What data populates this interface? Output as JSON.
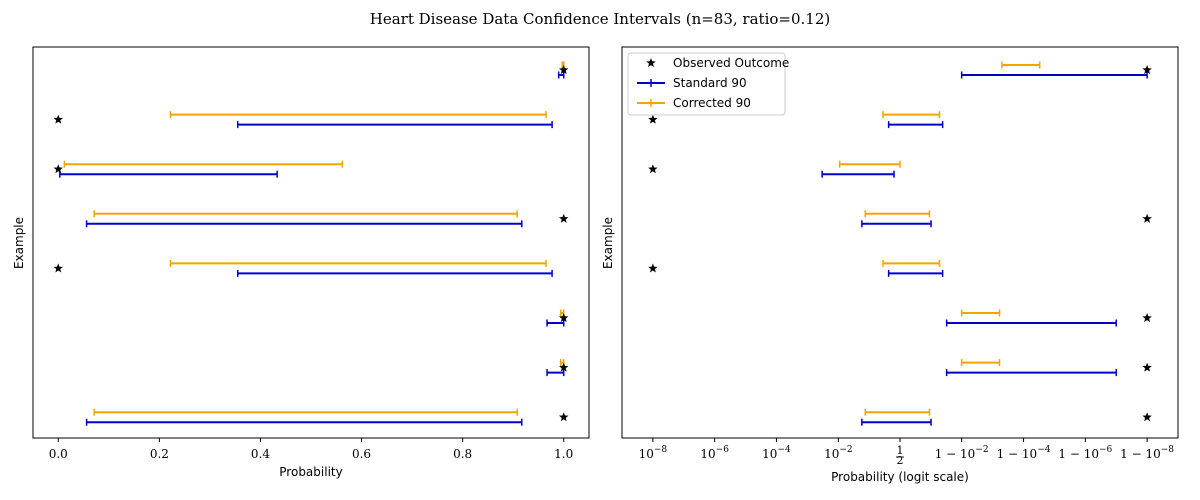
{
  "title": "Heart Disease Data Confidence Intervals (n=83, ratio=0.12)",
  "colors": {
    "standard": "#0000cc",
    "corrected": "#f5a300",
    "observed": "#000000"
  },
  "legend": {
    "placement": "upper-left of right panel",
    "observed": "Observed Outcome",
    "standard": "Standard 90",
    "corrected": "Corrected 90"
  },
  "chart_data": [
    {
      "type": "interval",
      "panel": "left",
      "xlabel": "Probability",
      "ylabel": "Example",
      "xscale": "linear",
      "xlim": [
        -0.05,
        1.05
      ],
      "xticks": [
        {
          "value": 0.0,
          "label": "0.0"
        },
        {
          "value": 0.2,
          "label": "0.2"
        },
        {
          "value": 0.4,
          "label": "0.4"
        },
        {
          "value": 0.6,
          "label": "0.6"
        },
        {
          "value": 0.8,
          "label": "0.8"
        },
        {
          "value": 1.0,
          "label": "1.0"
        }
      ],
      "rows": [
        {
          "observed": 1,
          "standard": [
            0.99,
            1.0
          ],
          "corrected": [
            0.997,
            1.0
          ]
        },
        {
          "observed": 0,
          "standard": [
            0.355,
            0.977
          ],
          "corrected": [
            0.222,
            0.965
          ]
        },
        {
          "observed": 0,
          "standard": [
            0.003,
            0.433
          ],
          "corrected": [
            0.012,
            0.562
          ]
        },
        {
          "observed": 1,
          "standard": [
            0.056,
            0.917
          ],
          "corrected": [
            0.071,
            0.908
          ]
        },
        {
          "observed": 0,
          "standard": [
            0.355,
            0.977
          ],
          "corrected": [
            0.222,
            0.965
          ]
        },
        {
          "observed": 1,
          "standard": [
            0.967,
            1.0
          ],
          "corrected": [
            0.994,
            1.0
          ]
        },
        {
          "observed": 1,
          "standard": [
            0.967,
            1.0
          ],
          "corrected": [
            0.994,
            1.0
          ]
        },
        {
          "observed": 1,
          "standard": [
            0.056,
            0.917
          ],
          "corrected": [
            0.071,
            0.908
          ]
        }
      ]
    },
    {
      "type": "interval",
      "panel": "right",
      "xlabel": "Probability (logit scale)",
      "ylabel": "Example",
      "xscale": "logit",
      "xlim": [
        1e-09,
        0.999999999
      ],
      "xticks": [
        {
          "value": 1e-08,
          "label": "10^{-8}"
        },
        {
          "value": 1e-06,
          "label": "10^{-6}"
        },
        {
          "value": 0.0001,
          "label": "10^{-4}"
        },
        {
          "value": 0.01,
          "label": "10^{-2}"
        },
        {
          "value": 0.5,
          "label": "1/2"
        },
        {
          "value": 0.99,
          "label": "1 - 10^{-2}"
        },
        {
          "value": 0.9999,
          "label": "1 - 10^{-4}"
        },
        {
          "value": 0.999999,
          "label": "1 - 10^{-6}"
        },
        {
          "value": 0.99999999,
          "label": "1 - 10^{-8}"
        }
      ],
      "rows": [
        {
          "observed": 0.99999999,
          "standard": [
            0.99,
            0.99999999
          ],
          "corrected": [
            0.9995,
            0.99997
          ]
        },
        {
          "observed": 1e-08,
          "standard": [
            0.3,
            0.96
          ],
          "corrected": [
            0.22,
            0.95
          ]
        },
        {
          "observed": 1e-08,
          "standard": [
            0.003,
            0.39
          ],
          "corrected": [
            0.011,
            0.5
          ]
        },
        {
          "observed": 0.99999999,
          "standard": [
            0.055,
            0.91
          ],
          "corrected": [
            0.07,
            0.9
          ]
        },
        {
          "observed": 1e-08,
          "standard": [
            0.3,
            0.96
          ],
          "corrected": [
            0.22,
            0.95
          ]
        },
        {
          "observed": 0.99999999,
          "standard": [
            0.97,
            0.9999999
          ],
          "corrected": [
            0.99,
            0.9994
          ]
        },
        {
          "observed": 0.99999999,
          "standard": [
            0.97,
            0.9999999
          ],
          "corrected": [
            0.99,
            0.9994
          ]
        },
        {
          "observed": 0.99999999,
          "standard": [
            0.055,
            0.91
          ],
          "corrected": [
            0.07,
            0.9
          ]
        }
      ]
    }
  ]
}
